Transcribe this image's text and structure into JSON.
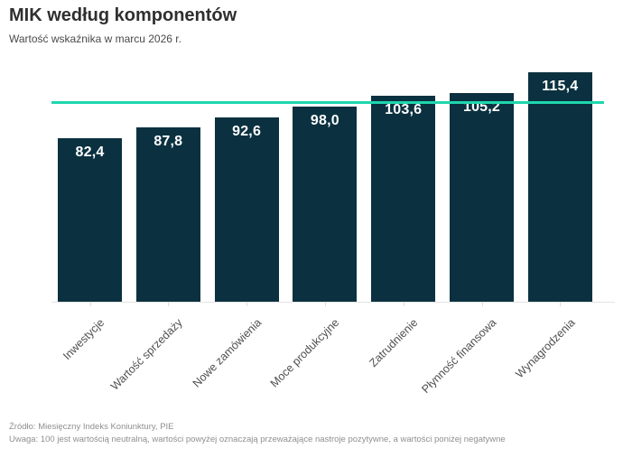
{
  "header": {
    "title": "MIK według komponentów",
    "subtitle": "Wartość wskaźnika w marcu 2026 r."
  },
  "footer": {
    "source": "Źródło: Miesięczny Indeks Koniunktury, PIE",
    "note": "Uwaga: 100 jest wartością neutralną, wartości powyżej oznaczają przeważające nastroje pozytywne, a wartości poniżej negatywne"
  },
  "colors": {
    "bar": "#0b3140",
    "reference_line": "#1fd6ad",
    "value_label": "#ffffff",
    "title_text": "#2f2f2f",
    "subtitle_text": "#4a4a4a",
    "category_label": "#4f4f4f",
    "footer_text": "#8f8f8f",
    "axis_line": "#e3e3e3"
  },
  "chart_data": {
    "type": "bar",
    "title": "MIK według komponentów",
    "subtitle": "Wartość wskaźnika w marcu 2026 r.",
    "categories": [
      "Inwestycje",
      "Wartość sprzedaży",
      "Nowe zamówienia",
      "Moce produkcyjne",
      "Zatrudnienie",
      "Płynność finansowa",
      "Wynagrodzenia"
    ],
    "values": [
      82.4,
      87.8,
      92.6,
      98.0,
      103.6,
      105.2,
      115.4
    ],
    "value_labels": [
      "82,4",
      "87,8",
      "92,6",
      "98,0",
      "103,6",
      "105,2",
      "115,4"
    ],
    "reference_line_value": 100,
    "ylim": [
      0,
      125
    ],
    "xlabel": "",
    "ylabel": "",
    "grid": false,
    "legend": false,
    "bar_label_position": "inside-top",
    "category_label_rotation": -45
  }
}
